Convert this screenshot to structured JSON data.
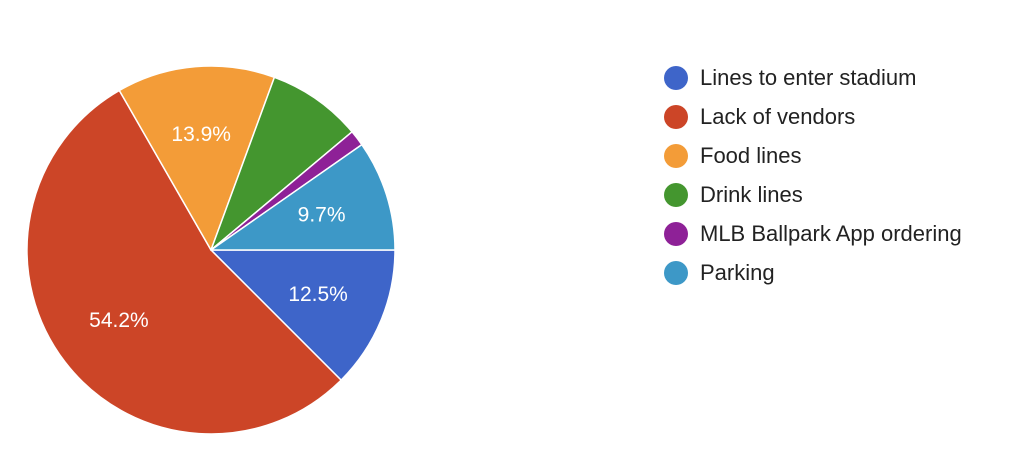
{
  "chart_data": {
    "type": "pie",
    "slices": [
      {
        "name": "Lines to enter stadium",
        "value": 12.5,
        "label": "12.5%",
        "color": "#3e65c9"
      },
      {
        "name": "Lack of vendors",
        "value": 54.2,
        "label": "54.2%",
        "color": "#cc4527"
      },
      {
        "name": "Food lines",
        "value": 13.9,
        "label": "13.9%",
        "color": "#f39c38"
      },
      {
        "name": "Drink lines",
        "value": 8.3,
        "label": "",
        "color": "#44962f"
      },
      {
        "name": "MLB Ballpark App ordering",
        "value": 1.4,
        "label": "",
        "color": "#8e2197"
      },
      {
        "name": "Parking",
        "value": 9.7,
        "label": "9.7%",
        "color": "#3d98c7"
      }
    ],
    "legend_position": "right"
  }
}
